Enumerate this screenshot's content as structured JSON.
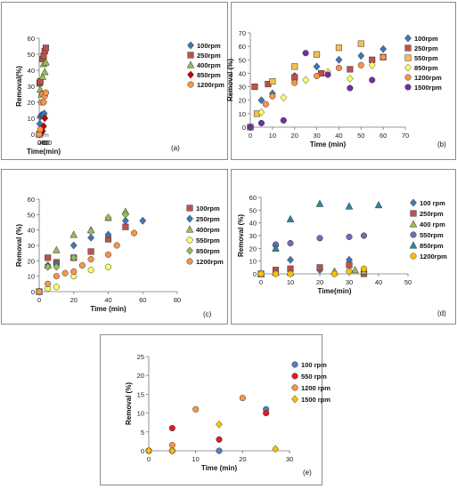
{
  "chart_data": [
    {
      "type": "scatter",
      "panel_label": "(a)",
      "xlabel": "Time(min)",
      "ylabel": "Removal(%)",
      "xlim": [
        0,
        80
      ],
      "ylim": [
        0,
        60
      ],
      "xticks": [
        0,
        20,
        40,
        60,
        80
      ],
      "yticks": [
        0,
        10,
        20,
        30,
        40,
        50,
        60
      ],
      "legend": "right",
      "series": [
        {
          "name": "100rpm",
          "color": "#3c78b4",
          "marker": "diamond",
          "points": [
            [
              0,
              0
            ],
            [
              1,
              0
            ],
            [
              5,
              6.5
            ],
            [
              10,
              11
            ],
            [
              20,
              12
            ],
            [
              30,
              12
            ],
            [
              40,
              11.5
            ],
            [
              45,
              13
            ]
          ]
        },
        {
          "name": "250rpm",
          "color": "#c0504d",
          "marker": "square",
          "points": [
            [
              0,
              0
            ],
            [
              5,
              32
            ],
            [
              10,
              33
            ],
            [
              30,
              47
            ],
            [
              40,
              49
            ],
            [
              50,
              52
            ],
            [
              60,
              54
            ]
          ]
        },
        {
          "name": "400rpm",
          "color": "#9bbb59",
          "marker": "triangle",
          "points": [
            [
              0,
              0
            ],
            [
              5,
              1
            ],
            [
              10,
              28
            ],
            [
              20,
              25
            ],
            [
              30,
              36
            ],
            [
              40,
              44
            ],
            [
              50,
              39
            ],
            [
              60,
              45
            ]
          ]
        },
        {
          "name": "850rpm",
          "color": "#c00000",
          "marker": "diamond",
          "points": [
            [
              0,
              0
            ],
            [
              5,
              0
            ],
            [
              20,
              1
            ],
            [
              30,
              2
            ],
            [
              40,
              5
            ],
            [
              50,
              10
            ]
          ]
        },
        {
          "name": "1200rpm",
          "color": "#f79646",
          "marker": "circle",
          "points": [
            [
              0,
              0
            ],
            [
              10,
              3
            ],
            [
              20,
              20
            ],
            [
              30,
              25
            ],
            [
              40,
              20
            ],
            [
              50,
              24
            ],
            [
              60,
              26
            ]
          ]
        }
      ]
    },
    {
      "type": "scatter",
      "panel_label": "(b)",
      "xlabel": "Time (min)",
      "ylabel": "Removal (%)",
      "xlim": [
        0,
        70
      ],
      "ylim": [
        0,
        70
      ],
      "xticks": [
        0,
        10,
        20,
        30,
        40,
        50,
        60,
        70
      ],
      "yticks": [
        0,
        10,
        20,
        30,
        40,
        50,
        60,
        70
      ],
      "legend": "right",
      "series": [
        {
          "name": "100rpm",
          "color": "#3c78b4",
          "marker": "diamond",
          "points": [
            [
              0,
              0
            ],
            [
              5,
              20
            ],
            [
              10,
              25
            ],
            [
              20,
              38
            ],
            [
              30,
              45
            ],
            [
              40,
              50
            ],
            [
              50,
              53
            ],
            [
              60,
              58
            ]
          ]
        },
        {
          "name": "250rpm",
          "color": "#c0504d",
          "marker": "square",
          "points": [
            [
              0,
              0
            ],
            [
              2,
              30
            ],
            [
              8,
              32
            ],
            [
              20,
              37
            ],
            [
              32,
              40
            ],
            [
              45,
              43
            ],
            [
              55,
              50
            ],
            [
              60,
              52
            ]
          ]
        },
        {
          "name": "550rpm",
          "color": "#f2c14e",
          "marker": "square",
          "points": [
            [
              0,
              0
            ],
            [
              3,
              10
            ],
            [
              10,
              34
            ],
            [
              20,
              45
            ],
            [
              30,
              54
            ],
            [
              40,
              59
            ],
            [
              50,
              62
            ]
          ]
        },
        {
          "name": "850rpm",
          "color": "#ffff66",
          "marker": "diamond",
          "points": [
            [
              0,
              0
            ],
            [
              5,
              11
            ],
            [
              15,
              22
            ],
            [
              25,
              35
            ],
            [
              35,
              41
            ],
            [
              45,
              36
            ],
            [
              55,
              46
            ]
          ]
        },
        {
          "name": "1200rpm",
          "color": "#f79646",
          "marker": "circle",
          "points": [
            [
              0,
              0
            ],
            [
              7,
              17
            ],
            [
              10,
              23
            ],
            [
              20,
              33
            ],
            [
              30,
              38
            ],
            [
              40,
              44
            ],
            [
              50,
              46
            ],
            [
              60,
              52
            ]
          ]
        },
        {
          "name": "1500rpm",
          "color": "#7030a0",
          "marker": "circle",
          "points": [
            [
              0,
              0
            ],
            [
              5,
              3
            ],
            [
              15,
              5
            ],
            [
              25,
              55
            ],
            [
              35,
              39
            ],
            [
              45,
              29
            ],
            [
              55,
              35
            ]
          ]
        }
      ]
    },
    {
      "type": "scatter",
      "panel_label": "(c)",
      "xlabel": "Time (min)",
      "ylabel": "Removal (%)",
      "xlim": [
        0,
        80
      ],
      "ylim": [
        0,
        60
      ],
      "xticks": [
        0,
        20,
        40,
        60,
        80
      ],
      "yticks": [
        0,
        10,
        20,
        30,
        40,
        50,
        60
      ],
      "legend": "right",
      "series": [
        {
          "name": "100rpm",
          "color": "#c0504d",
          "marker": "square",
          "points": [
            [
              0,
              0
            ],
            [
              5,
              22
            ],
            [
              10,
              19
            ],
            [
              20,
              22
            ],
            [
              30,
              26
            ],
            [
              40,
              34
            ],
            [
              50,
              42
            ]
          ]
        },
        {
          "name": "250rpm",
          "color": "#3c78b4",
          "marker": "diamond",
          "points": [
            [
              0,
              0
            ],
            [
              5,
              17
            ],
            [
              10,
              18
            ],
            [
              20,
              30
            ],
            [
              30,
              35
            ],
            [
              40,
              37
            ],
            [
              50,
              46
            ],
            [
              60,
              46
            ]
          ]
        },
        {
          "name": "400rpm",
          "color": "#9bbb59",
          "marker": "triangle",
          "points": [
            [
              0,
              0
            ],
            [
              5,
              17
            ],
            [
              10,
              27
            ],
            [
              20,
              37
            ],
            [
              30,
              40
            ],
            [
              40,
              48
            ],
            [
              50,
              52
            ]
          ]
        },
        {
          "name": "550rpm",
          "color": "#ffff66",
          "marker": "circle",
          "points": [
            [
              0,
              0
            ],
            [
              5,
              2
            ],
            [
              10,
              3
            ],
            [
              20,
              10
            ],
            [
              30,
              14
            ],
            [
              40,
              16
            ]
          ]
        },
        {
          "name": "850rpm",
          "color": "#9bbb59",
          "marker": "diamond",
          "points": [
            [
              0,
              0
            ],
            [
              5,
              16
            ],
            [
              10,
              16
            ],
            [
              20,
              22
            ],
            [
              30,
              39
            ],
            [
              40,
              48
            ],
            [
              50,
              50
            ]
          ]
        },
        {
          "name": "1200rpm",
          "color": "#f79646",
          "marker": "circle",
          "points": [
            [
              0,
              0
            ],
            [
              5,
              5
            ],
            [
              10,
              10
            ],
            [
              15,
              12
            ],
            [
              20,
              13
            ],
            [
              25,
              17
            ],
            [
              30,
              21
            ],
            [
              40,
              24
            ],
            [
              45,
              30
            ],
            [
              55,
              38
            ]
          ]
        }
      ]
    },
    {
      "type": "scatter",
      "panel_label": "(d)",
      "xlabel": "Time(min)",
      "ylabel": "Removal (%)",
      "xlim": [
        0,
        50
      ],
      "ylim": [
        0,
        60
      ],
      "xticks": [
        0,
        10,
        20,
        30,
        40,
        50
      ],
      "yticks": [
        0,
        10,
        20,
        30,
        40,
        50,
        60
      ],
      "legend": "right",
      "series": [
        {
          "name": "100 rpm",
          "color": "#3c78b4",
          "marker": "diamond",
          "points": [
            [
              0,
              0
            ],
            [
              5,
              22
            ],
            [
              10,
              11
            ],
            [
              20,
              3
            ],
            [
              30,
              11
            ],
            [
              35,
              2
            ]
          ]
        },
        {
          "name": "250rpm",
          "color": "#c0504d",
          "marker": "square",
          "points": [
            [
              0,
              0
            ],
            [
              5,
              3
            ],
            [
              10,
              4
            ],
            [
              20,
              5
            ],
            [
              30,
              7
            ],
            [
              35,
              0
            ]
          ]
        },
        {
          "name": "400 rpm",
          "color": "#9bbb59",
          "marker": "triangle",
          "points": [
            [
              0,
              0
            ],
            [
              5,
              1
            ],
            [
              10,
              1
            ],
            [
              25,
              2
            ],
            [
              32,
              3
            ],
            [
              35,
              2
            ]
          ]
        },
        {
          "name": "550rpm",
          "color": "#6e6eb4",
          "marker": "circle",
          "points": [
            [
              0,
              0
            ],
            [
              5,
              23
            ],
            [
              10,
              24
            ],
            [
              20,
              28
            ],
            [
              30,
              29
            ],
            [
              35,
              30
            ]
          ]
        },
        {
          "name": "850rpm",
          "color": "#31859c",
          "marker": "triangle",
          "points": [
            [
              0,
              0
            ],
            [
              5,
              20
            ],
            [
              10,
              43
            ],
            [
              20,
              55
            ],
            [
              30,
              53
            ],
            [
              40,
              54
            ]
          ]
        },
        {
          "name": "1200rpm",
          "color": "#ffc000",
          "marker": "circle",
          "points": [
            [
              0,
              0
            ],
            [
              5,
              0
            ],
            [
              10,
              0
            ],
            [
              25,
              0
            ],
            [
              30,
              2
            ],
            [
              35,
              4
            ]
          ]
        }
      ]
    },
    {
      "type": "scatter",
      "panel_label": "(e)",
      "xlabel": "Time (min)",
      "ylabel": "Removal (%)",
      "xlim": [
        0,
        30
      ],
      "ylim": [
        0,
        25
      ],
      "xticks": [
        0,
        10,
        20,
        30
      ],
      "yticks": [
        0,
        5,
        10,
        15,
        20,
        25
      ],
      "legend": "right",
      "series": [
        {
          "name": "100 rpm",
          "color": "#4f81bd",
          "marker": "circle",
          "points": [
            [
              0,
              0
            ],
            [
              5,
              0
            ],
            [
              15,
              0
            ],
            [
              25,
              11
            ]
          ]
        },
        {
          "name": "550 rpm",
          "color": "#e31a1c",
          "marker": "circle",
          "points": [
            [
              0,
              0
            ],
            [
              5,
              6
            ],
            [
              15,
              3
            ],
            [
              25,
              10
            ]
          ]
        },
        {
          "name": "1200 rpm",
          "color": "#f79646",
          "marker": "circle",
          "points": [
            [
              0,
              0
            ],
            [
              5,
              1.5
            ],
            [
              10,
              11
            ],
            [
              20,
              14
            ]
          ]
        },
        {
          "name": "1500 rpm",
          "color": "#ffc000",
          "marker": "diamond",
          "points": [
            [
              0,
              0
            ],
            [
              5,
              0
            ],
            [
              15,
              7
            ],
            [
              27,
              0.5
            ]
          ]
        }
      ]
    }
  ]
}
